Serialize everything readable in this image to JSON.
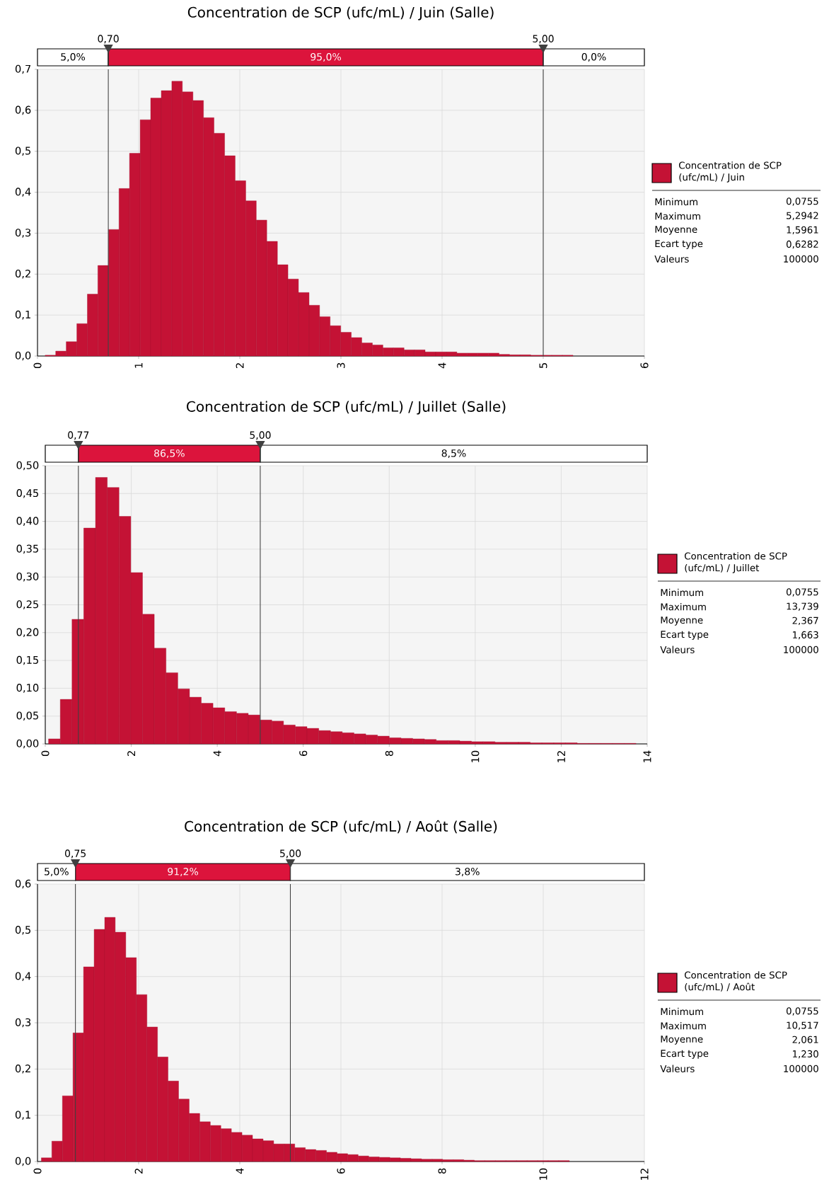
{
  "chart_data": [
    {
      "type": "histogram",
      "title": "Concentration de SCP (ufc/mL) / Juin (Salle)",
      "bins": [
        0.076,
        0.18,
        0.284,
        0.389,
        0.493,
        0.597,
        0.702,
        0.806,
        0.91,
        1.015,
        1.119,
        1.224,
        1.328,
        1.432,
        1.537,
        1.641,
        1.745,
        1.85,
        1.954,
        2.059,
        2.163,
        2.267,
        2.372,
        2.476,
        2.58,
        2.685,
        2.789,
        2.893,
        2.998,
        3.102,
        3.206,
        3.311,
        3.415,
        3.519,
        3.624,
        3.728,
        3.832,
        3.937,
        4.041,
        4.146,
        4.25,
        4.354,
        4.459,
        4.563,
        4.667,
        4.772,
        4.876,
        4.98,
        5.085,
        5.189,
        5.294
      ],
      "series": [
        {
          "name": "Concentration de SCP (ufc/mL) / Juin",
          "color": "#c41235",
          "values": [
            0.002,
            0.012,
            0.035,
            0.079,
            0.151,
            0.221,
            0.309,
            0.409,
            0.495,
            0.577,
            0.63,
            0.648,
            0.671,
            0.645,
            0.624,
            0.582,
            0.544,
            0.489,
            0.428,
            0.379,
            0.332,
            0.28,
            0.223,
            0.188,
            0.155,
            0.124,
            0.096,
            0.074,
            0.058,
            0.045,
            0.032,
            0.027,
            0.02,
            0.02,
            0.015,
            0.015,
            0.01,
            0.01,
            0.01,
            0.007,
            0.007,
            0.007,
            0.007,
            0.004,
            0.003,
            0.003,
            0.002,
            0.002,
            0.002,
            0.002
          ]
        }
      ],
      "xlim": [
        0,
        6
      ],
      "xticks": [
        0,
        1,
        2,
        3,
        4,
        5,
        6
      ],
      "ylim": [
        0,
        0.7
      ],
      "yticks": [
        {
          "value": 0,
          "label": "0,0"
        },
        {
          "value": 0.1,
          "label": "0,1"
        },
        {
          "value": 0.2,
          "label": "0,2"
        },
        {
          "value": 0.3,
          "label": "0,3"
        },
        {
          "value": 0.4,
          "label": "0,4"
        },
        {
          "value": 0.5,
          "label": "0,5"
        },
        {
          "value": 0.6,
          "label": "0,6"
        },
        {
          "value": 0.7,
          "label": "0,7"
        }
      ],
      "grid": true,
      "legend": "right",
      "ref_lines": [
        {
          "axis": "x",
          "value": 0.7,
          "label": "0,70"
        },
        {
          "axis": "x",
          "value": 5.0,
          "label": "5,00"
        }
      ],
      "annotations": [
        "5,0%",
        "95,0%",
        "0,0%",
        "Minimum",
        "0,0755",
        "Maximum",
        "5,2942",
        "Moyenne",
        "1,5961",
        "Ecart type",
        "0,6282",
        "Valeurs",
        "100000"
      ]
    },
    {
      "type": "histogram",
      "title": "Concentration de SCP (ufc/mL) / Juillet (Salle)",
      "bins": [
        0.076,
        0.349,
        0.622,
        0.895,
        1.169,
        1.442,
        1.715,
        1.989,
        2.262,
        2.535,
        2.808,
        3.082,
        3.355,
        3.628,
        3.901,
        4.175,
        4.448,
        4.721,
        4.994,
        5.268,
        5.541,
        5.814,
        6.087,
        6.361,
        6.634,
        6.907,
        7.18,
        7.454,
        7.727,
        8.0,
        8.273,
        8.547,
        8.82,
        9.093,
        9.367,
        9.64,
        9.913,
        10.186,
        10.46,
        10.733,
        11.006,
        11.279,
        11.553,
        11.826,
        12.099,
        12.372,
        12.646,
        12.919,
        13.192,
        13.466,
        13.739
      ],
      "series": [
        {
          "name": "Concentration de SCP (ufc/mL) / Juillet",
          "color": "#c41235",
          "values": [
            0.009,
            0.08,
            0.224,
            0.388,
            0.479,
            0.461,
            0.409,
            0.308,
            0.233,
            0.172,
            0.128,
            0.099,
            0.084,
            0.073,
            0.065,
            0.058,
            0.055,
            0.052,
            0.043,
            0.041,
            0.034,
            0.031,
            0.028,
            0.024,
            0.022,
            0.02,
            0.018,
            0.016,
            0.014,
            0.011,
            0.01,
            0.009,
            0.008,
            0.006,
            0.006,
            0.005,
            0.004,
            0.004,
            0.003,
            0.003,
            0.003,
            0.002,
            0.002,
            0.002,
            0.002,
            0.001,
            0.001,
            0.001,
            0.001,
            0.001
          ]
        }
      ],
      "xlim": [
        0,
        14
      ],
      "xticks": [
        0,
        2,
        4,
        6,
        8,
        10,
        12,
        14
      ],
      "ylim": [
        0,
        0.5
      ],
      "yticks": [
        {
          "value": 0,
          "label": "0,00"
        },
        {
          "value": 0.05,
          "label": "0,05"
        },
        {
          "value": 0.1,
          "label": "0,10"
        },
        {
          "value": 0.15,
          "label": "0,15"
        },
        {
          "value": 0.2,
          "label": "0,20"
        },
        {
          "value": 0.25,
          "label": "0,25"
        },
        {
          "value": 0.3,
          "label": "0,30"
        },
        {
          "value": 0.35,
          "label": "0,35"
        },
        {
          "value": 0.4,
          "label": "0,40"
        },
        {
          "value": 0.45,
          "label": "0,45"
        },
        {
          "value": 0.5,
          "label": "0,50"
        }
      ],
      "grid": true,
      "legend": "right",
      "ref_lines": [
        {
          "axis": "x",
          "value": 0.77,
          "label": "0,77"
        },
        {
          "axis": "x",
          "value": 5.0,
          "label": "5,00"
        }
      ],
      "annotations": [
        "86,5%",
        "8,5%",
        "Minimum",
        "0,0755",
        "Maximum",
        "13,739",
        "Moyenne",
        "2,367",
        "Ecart type",
        "1,663",
        "Valeurs",
        "100000"
      ]
    },
    {
      "type": "histogram",
      "title": "Concentration de SCP (ufc/mL) / Août (Salle)",
      "bins": [
        0.076,
        0.284,
        0.493,
        0.702,
        0.911,
        1.12,
        1.329,
        1.537,
        1.746,
        1.955,
        2.164,
        2.373,
        2.581,
        2.79,
        2.999,
        3.208,
        3.417,
        3.626,
        3.834,
        4.043,
        4.252,
        4.461,
        4.67,
        4.879,
        5.087,
        5.296,
        5.505,
        5.714,
        5.923,
        6.132,
        6.34,
        6.549,
        6.758,
        6.967,
        7.176,
        7.385,
        7.593,
        7.802,
        8.011,
        8.22,
        8.429,
        8.638,
        8.846,
        9.055,
        9.264,
        9.473,
        9.682,
        9.891,
        10.099,
        10.308,
        10.517
      ],
      "series": [
        {
          "name": "Concentration de SCP (ufc/mL) / Août",
          "color": "#c41235",
          "values": [
            0.008,
            0.044,
            0.142,
            0.278,
            0.421,
            0.502,
            0.528,
            0.496,
            0.441,
            0.361,
            0.291,
            0.226,
            0.174,
            0.135,
            0.104,
            0.086,
            0.078,
            0.071,
            0.063,
            0.057,
            0.049,
            0.045,
            0.038,
            0.038,
            0.03,
            0.026,
            0.024,
            0.02,
            0.017,
            0.015,
            0.012,
            0.01,
            0.009,
            0.008,
            0.007,
            0.006,
            0.005,
            0.005,
            0.004,
            0.004,
            0.003,
            0.002,
            0.002,
            0.002,
            0.002,
            0.002,
            0.002,
            0.002,
            0.002,
            0.002
          ]
        }
      ],
      "xlim": [
        0,
        12
      ],
      "xticks": [
        0,
        2,
        4,
        6,
        8,
        10,
        12
      ],
      "ylim": [
        0,
        0.6
      ],
      "yticks": [
        {
          "value": 0,
          "label": "0,0"
        },
        {
          "value": 0.1,
          "label": "0,1"
        },
        {
          "value": 0.2,
          "label": "0,2"
        },
        {
          "value": 0.3,
          "label": "0,3"
        },
        {
          "value": 0.4,
          "label": "0,4"
        },
        {
          "value": 0.5,
          "label": "0,5"
        },
        {
          "value": 0.6,
          "label": "0,6"
        }
      ],
      "grid": true,
      "legend": "right",
      "ref_lines": [
        {
          "axis": "x",
          "value": 0.75,
          "label": "0,75"
        },
        {
          "axis": "x",
          "value": 5.0,
          "label": "5,00"
        }
      ],
      "annotations": [
        "5,0%",
        "91,2%",
        "3,8%",
        "Minimum",
        "0,0755",
        "Maximum",
        "10,517",
        "Moyenne",
        "2,061",
        "Ecart type",
        "1,230",
        "Valeurs",
        "100000"
      ]
    }
  ]
}
